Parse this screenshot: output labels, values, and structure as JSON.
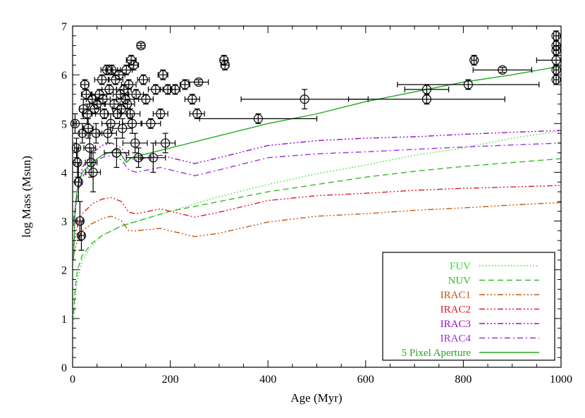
{
  "chart_data": {
    "type": "scatter",
    "title": "",
    "xlabel": "Age (Myr)",
    "ylabel": "log Mass (Msun)",
    "xlim": [
      0,
      1000
    ],
    "ylim": [
      0,
      7
    ],
    "xticks": [
      0,
      200,
      400,
      600,
      800,
      1000
    ],
    "xtick_labels": [
      "0",
      "200",
      "400",
      "600",
      "800",
      "1000"
    ],
    "yticks": [
      0,
      1,
      2,
      3,
      4,
      5,
      6,
      7
    ],
    "ytick_labels": [
      "0",
      "1",
      "2",
      "3",
      "4",
      "5",
      "6",
      "7"
    ],
    "legend_position": "bottom-right",
    "series": [
      {
        "name": "FUV",
        "color": "#33dd33",
        "dash": "dotted",
        "x": [
          2,
          5,
          10,
          20,
          40,
          60,
          100,
          150,
          200,
          300,
          400,
          500,
          600,
          700,
          800,
          900,
          1000
        ],
        "y": [
          0.9,
          1.4,
          1.8,
          2.2,
          2.5,
          2.7,
          2.9,
          3.05,
          3.2,
          3.5,
          3.75,
          3.97,
          4.15,
          4.35,
          4.5,
          4.7,
          4.85
        ]
      },
      {
        "name": "NUV",
        "color": "#33bb22",
        "dash": "dashed",
        "x": [
          2,
          5,
          10,
          20,
          40,
          60,
          100,
          150,
          200,
          300,
          400,
          500,
          600,
          700,
          800,
          900,
          1000
        ],
        "y": [
          1.1,
          1.6,
          2.0,
          2.3,
          2.55,
          2.7,
          2.9,
          3.05,
          3.2,
          3.4,
          3.6,
          3.75,
          3.9,
          4.02,
          4.12,
          4.2,
          4.28
        ]
      },
      {
        "name": "IRAC1",
        "color": "#c05a10",
        "dash": "dash-triple-dot",
        "x": [
          2,
          10,
          20,
          40,
          60,
          80,
          100,
          115,
          130,
          180,
          200,
          250,
          300,
          400,
          500,
          600,
          700,
          800,
          900,
          1000
        ],
        "y": [
          2.3,
          2.6,
          2.8,
          2.95,
          3.05,
          3.1,
          3.0,
          2.8,
          2.8,
          2.85,
          2.8,
          2.68,
          2.75,
          2.98,
          3.1,
          3.15,
          3.22,
          3.27,
          3.33,
          3.38
        ]
      },
      {
        "name": "IRAC2",
        "color": "#e01a2a",
        "dash": "dash-triple-dot",
        "x": [
          2,
          10,
          20,
          40,
          60,
          80,
          100,
          115,
          130,
          180,
          200,
          250,
          300,
          400,
          500,
          600,
          700,
          800,
          900,
          1000
        ],
        "y": [
          2.5,
          2.9,
          3.15,
          3.35,
          3.45,
          3.48,
          3.4,
          3.18,
          3.15,
          3.25,
          3.2,
          3.08,
          3.18,
          3.42,
          3.52,
          3.57,
          3.63,
          3.67,
          3.7,
          3.73
        ]
      },
      {
        "name": "IRAC3",
        "color": "#9a10c0",
        "dash": "dash-triple-dot",
        "x": [
          2,
          10,
          20,
          40,
          60,
          80,
          100,
          115,
          130,
          180,
          200,
          250,
          300,
          400,
          500,
          600,
          700,
          800,
          900,
          1000
        ],
        "y": [
          3.0,
          3.7,
          4.1,
          4.4,
          4.55,
          4.6,
          4.5,
          4.3,
          4.25,
          4.35,
          4.3,
          4.18,
          4.3,
          4.55,
          4.65,
          4.7,
          4.73,
          4.78,
          4.82,
          4.86
        ]
      },
      {
        "name": "IRAC4",
        "color": "#9a30e0",
        "dash": "dash-dot",
        "x": [
          2,
          10,
          20,
          40,
          60,
          80,
          100,
          115,
          130,
          180,
          200,
          250,
          300,
          400,
          500,
          600,
          700,
          800,
          900,
          1000
        ],
        "y": [
          2.9,
          3.55,
          3.9,
          4.2,
          4.3,
          4.35,
          4.25,
          4.05,
          4.0,
          4.1,
          4.05,
          3.93,
          4.05,
          4.3,
          4.38,
          4.42,
          4.47,
          4.52,
          4.56,
          4.6
        ]
      },
      {
        "name": "5 Pixel Aperture",
        "color": "#22aa22",
        "dash": "solid",
        "x": [
          2,
          5,
          10,
          20,
          40,
          60,
          80,
          90,
          100,
          110,
          120,
          140,
          160,
          200,
          300,
          400,
          500,
          600,
          700,
          800,
          900,
          1000
        ],
        "y": [
          2.2,
          3.2,
          3.7,
          4.0,
          4.2,
          4.35,
          4.42,
          4.48,
          4.35,
          4.2,
          4.3,
          4.35,
          4.4,
          4.5,
          4.75,
          5.0,
          5.2,
          5.45,
          5.65,
          5.85,
          6.0,
          6.18
        ]
      }
    ],
    "points": [
      {
        "x": 5,
        "y": 5.0,
        "xerr": 3,
        "yerr": 0.2
      },
      {
        "x": 8,
        "y": 4.5,
        "xerr": 4,
        "yerr": 0.2
      },
      {
        "x": 10,
        "y": 4.2,
        "xerr": 5,
        "yerr": 0.3
      },
      {
        "x": 12,
        "y": 3.8,
        "xerr": 6,
        "yerr": 0.4
      },
      {
        "x": 15,
        "y": 3.0,
        "xerr": 6,
        "yerr": 0.4
      },
      {
        "x": 18,
        "y": 2.7,
        "xerr": 6,
        "yerr": 0.3
      },
      {
        "x": 20,
        "y": 4.8,
        "xerr": 6,
        "yerr": 0.2
      },
      {
        "x": 22,
        "y": 5.3,
        "xerr": 8,
        "yerr": 0.2
      },
      {
        "x": 25,
        "y": 5.8,
        "xerr": 8,
        "yerr": 0.1
      },
      {
        "x": 28,
        "y": 5.6,
        "xerr": 10,
        "yerr": 0.1
      },
      {
        "x": 30,
        "y": 5.2,
        "xerr": 10,
        "yerr": 0.2
      },
      {
        "x": 32,
        "y": 4.9,
        "xerr": 10,
        "yerr": 0.2
      },
      {
        "x": 35,
        "y": 4.5,
        "xerr": 12,
        "yerr": 0.3
      },
      {
        "x": 38,
        "y": 4.2,
        "xerr": 12,
        "yerr": 0.3
      },
      {
        "x": 40,
        "y": 5.5,
        "xerr": 12,
        "yerr": 0.1
      },
      {
        "x": 42,
        "y": 4.0,
        "xerr": 15,
        "yerr": 0.4
      },
      {
        "x": 45,
        "y": 5.3,
        "xerr": 12,
        "yerr": 0.1
      },
      {
        "x": 48,
        "y": 4.8,
        "xerr": 12,
        "yerr": 0.2
      },
      {
        "x": 50,
        "y": 5.4,
        "xerr": 15,
        "yerr": 0.1
      },
      {
        "x": 55,
        "y": 5.6,
        "xerr": 15,
        "yerr": 0.1
      },
      {
        "x": 60,
        "y": 5.9,
        "xerr": 15,
        "yerr": 0.1
      },
      {
        "x": 62,
        "y": 5.5,
        "xerr": 15,
        "yerr": 0.1
      },
      {
        "x": 65,
        "y": 5.2,
        "xerr": 18,
        "yerr": 0.1
      },
      {
        "x": 70,
        "y": 6.1,
        "xerr": 12,
        "yerr": 0.1
      },
      {
        "x": 72,
        "y": 4.8,
        "xerr": 18,
        "yerr": 0.2
      },
      {
        "x": 75,
        "y": 5.7,
        "xerr": 15,
        "yerr": 0.1
      },
      {
        "x": 78,
        "y": 5.0,
        "xerr": 18,
        "yerr": 0.2
      },
      {
        "x": 80,
        "y": 6.1,
        "xerr": 12,
        "yerr": 0.1
      },
      {
        "x": 85,
        "y": 5.4,
        "xerr": 18,
        "yerr": 0.1
      },
      {
        "x": 88,
        "y": 5.9,
        "xerr": 15,
        "yerr": 0.1
      },
      {
        "x": 90,
        "y": 4.4,
        "xerr": 25,
        "yerr": 0.3
      },
      {
        "x": 92,
        "y": 5.2,
        "xerr": 20,
        "yerr": 0.1
      },
      {
        "x": 95,
        "y": 6.0,
        "xerr": 12,
        "yerr": 0.1
      },
      {
        "x": 98,
        "y": 5.6,
        "xerr": 15,
        "yerr": 0.1
      },
      {
        "x": 100,
        "y": 5.3,
        "xerr": 18,
        "yerr": 0.1
      },
      {
        "x": 102,
        "y": 4.9,
        "xerr": 20,
        "yerr": 0.2
      },
      {
        "x": 105,
        "y": 5.7,
        "xerr": 15,
        "yerr": 0.1
      },
      {
        "x": 108,
        "y": 5.5,
        "xerr": 18,
        "yerr": 0.1
      },
      {
        "x": 110,
        "y": 6.1,
        "xerr": 12,
        "yerr": 0.1
      },
      {
        "x": 112,
        "y": 5.4,
        "xerr": 15,
        "yerr": 0.1
      },
      {
        "x": 115,
        "y": 5.8,
        "xerr": 15,
        "yerr": 0.1
      },
      {
        "x": 118,
        "y": 5.2,
        "xerr": 20,
        "yerr": 0.1
      },
      {
        "x": 120,
        "y": 6.3,
        "xerr": 10,
        "yerr": 0.1
      },
      {
        "x": 122,
        "y": 5.0,
        "xerr": 20,
        "yerr": 0.2
      },
      {
        "x": 125,
        "y": 6.2,
        "xerr": 10,
        "yerr": 0.1
      },
      {
        "x": 128,
        "y": 4.6,
        "xerr": 25,
        "yerr": 0.2
      },
      {
        "x": 130,
        "y": 5.6,
        "xerr": 15,
        "yerr": 0.1
      },
      {
        "x": 135,
        "y": 4.3,
        "xerr": 25,
        "yerr": 0.2
      },
      {
        "x": 140,
        "y": 6.6,
        "xerr": 8,
        "yerr": 0.05
      },
      {
        "x": 145,
        "y": 5.9,
        "xerr": 12,
        "yerr": 0.1
      },
      {
        "x": 150,
        "y": 5.5,
        "xerr": 15,
        "yerr": 0.1
      },
      {
        "x": 160,
        "y": 5.0,
        "xerr": 20,
        "yerr": 0.1
      },
      {
        "x": 165,
        "y": 4.3,
        "xerr": 25,
        "yerr": 0.3
      },
      {
        "x": 170,
        "y": 5.7,
        "xerr": 15,
        "yerr": 0.1
      },
      {
        "x": 180,
        "y": 5.2,
        "xerr": 15,
        "yerr": 0.1
      },
      {
        "x": 185,
        "y": 6.0,
        "xerr": 10,
        "yerr": 0.1
      },
      {
        "x": 190,
        "y": 4.6,
        "xerr": 20,
        "yerr": 0.2
      },
      {
        "x": 195,
        "y": 5.7,
        "xerr": 15,
        "yerr": 0.1
      },
      {
        "x": 210,
        "y": 5.7,
        "xerr": 10,
        "yerr": 0.1
      },
      {
        "x": 230,
        "y": 5.8,
        "xerr": 10,
        "yerr": 0.1
      },
      {
        "x": 245,
        "y": 5.5,
        "xerr": 15,
        "yerr": 0.1
      },
      {
        "x": 255,
        "y": 5.2,
        "xerr": 15,
        "yerr": 0.1
      },
      {
        "x": 258,
        "y": 5.85,
        "xerr": 20,
        "yerr": 0.05
      },
      {
        "x": 310,
        "y": 6.3,
        "xerr": 8,
        "yerr": 0.1
      },
      {
        "x": 312,
        "y": 6.2,
        "xerr": 8,
        "yerr": 0.1
      },
      {
        "x": 380,
        "y": 5.1,
        "xerr": 120,
        "yerr": 0.1
      },
      {
        "x": 475,
        "y": 5.5,
        "xerr": 130,
        "yerr": 0.2
      },
      {
        "x": 725,
        "y": 5.7,
        "xerr": 45,
        "yerr": 0.1
      },
      {
        "x": 725,
        "y": 5.5,
        "xerr": 160,
        "yerr": 0.1
      },
      {
        "x": 810,
        "y": 5.8,
        "xerr": 145,
        "yerr": 0.1
      },
      {
        "x": 822,
        "y": 6.3,
        "xerr": 5,
        "yerr": 0.1
      },
      {
        "x": 880,
        "y": 6.1,
        "xerr": 60,
        "yerr": 0.05
      },
      {
        "x": 990,
        "y": 6.8,
        "xerr": 5,
        "yerr": 0.1
      },
      {
        "x": 990,
        "y": 6.6,
        "xerr": 5,
        "yerr": 0.1
      },
      {
        "x": 990,
        "y": 6.5,
        "xerr": 5,
        "yerr": 0.1
      },
      {
        "x": 990,
        "y": 6.3,
        "xerr": 40,
        "yerr": 0.1
      },
      {
        "x": 990,
        "y": 6.1,
        "xerr": 5,
        "yerr": 0.1
      },
      {
        "x": 990,
        "y": 5.9,
        "xerr": 5,
        "yerr": 0.1
      }
    ]
  }
}
